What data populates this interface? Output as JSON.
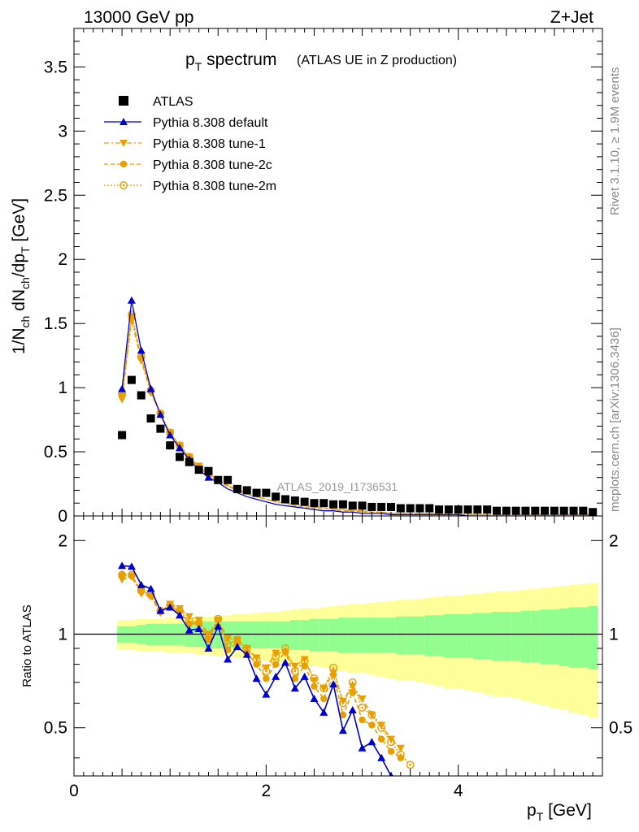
{
  "header": {
    "left": "13000 GeV pp",
    "right": "Z+Jet"
  },
  "title": {
    "main": "p",
    "main_sub": "T",
    "main_rest": " spectrum",
    "small": "(ATLAS UE in Z production)"
  },
  "watermark": "ATLAS_2019_I1736531",
  "side_texts": {
    "rivet": "Rivet 3.1.10, ≥ 1.9M events",
    "mcplots": "mcplots.cern.ch [arXiv:1306.3436]"
  },
  "axes": {
    "ylabel_top": "1/N_ch dN_ch/dp_T [GeV]",
    "ylabel_bottom": "Ratio to ATLAS",
    "xlabel": "p_T [GeV]",
    "x_ticks": [
      "0",
      "2",
      "4"
    ],
    "y_ticks_top": [
      "0",
      "0.5",
      "1",
      "1.5",
      "2",
      "2.5",
      "3",
      "3.5"
    ],
    "y_ticks_ratio": [
      "0.5",
      "1",
      "2"
    ]
  },
  "chart_data": {
    "type": "scatter",
    "x_range": [
      0,
      5.5
    ],
    "y_range_top": [
      0,
      3.8
    ],
    "y_range_ratio": [
      0.35,
      2.4
    ],
    "ratio_log_scale": true,
    "x": [
      0.5,
      0.6,
      0.7,
      0.8,
      0.9,
      1.0,
      1.1,
      1.2,
      1.3,
      1.4,
      1.5,
      1.6,
      1.7,
      1.8,
      1.9,
      2.0,
      2.1,
      2.2,
      2.3,
      2.4,
      2.5,
      2.6,
      2.7,
      2.8,
      2.9,
      3.0,
      3.1,
      3.2,
      3.3,
      3.4,
      3.5,
      3.6,
      3.7,
      3.8,
      3.9,
      4.0,
      4.1,
      4.2,
      4.3,
      4.4,
      4.5,
      4.6,
      4.7,
      4.8,
      4.9,
      5.0,
      5.1,
      5.2,
      5.3,
      5.4
    ],
    "atlas": [
      0.63,
      1.06,
      0.94,
      0.76,
      0.68,
      0.55,
      0.46,
      0.42,
      0.36,
      0.35,
      0.28,
      0.28,
      0.21,
      0.2,
      0.18,
      0.18,
      0.15,
      0.13,
      0.12,
      0.11,
      0.1,
      0.1,
      0.09,
      0.09,
      0.08,
      0.08,
      0.07,
      0.07,
      0.07,
      0.06,
      0.06,
      0.06,
      0.06,
      0.05,
      0.05,
      0.05,
      0.05,
      0.05,
      0.05,
      0.04,
      0.04,
      0.04,
      0.04,
      0.04,
      0.04,
      0.04,
      0.04,
      0.04,
      0.04,
      0.03
    ],
    "series": [
      {
        "name": "Pythia 8.308 default",
        "color": "#0000cc",
        "marker": "triangle-up",
        "line": "solid",
        "values": [
          0.99,
          1.68,
          1.29,
          0.99,
          0.79,
          0.63,
          0.53,
          0.44,
          0.36,
          0.3,
          0.26,
          0.21,
          0.18,
          0.15,
          0.13,
          0.11,
          0.09,
          0.08,
          0.07,
          0.06,
          0.05,
          0.04,
          0.04,
          0.03,
          0.03,
          0.02,
          0.02,
          0.02,
          0.01,
          0.01,
          0.01,
          0.01,
          0.01,
          0.01,
          0.01,
          0.01,
          0.0,
          0.0,
          0.0,
          0.0,
          0.0,
          0.0,
          0.0,
          0.0,
          0.0,
          0.0,
          0.0,
          0.0,
          0.0,
          0.0
        ]
      },
      {
        "name": "Pythia 8.308 tune-1",
        "color": "#e8a000",
        "marker": "triangle-down",
        "line": "dashdot",
        "values": [
          0.91,
          1.52,
          1.21,
          0.96,
          0.79,
          0.65,
          0.55,
          0.46,
          0.39,
          0.33,
          0.28,
          0.24,
          0.21,
          0.18,
          0.15,
          0.13,
          0.11,
          0.1,
          0.09,
          0.08,
          0.07,
          0.06,
          0.05,
          0.05,
          0.04,
          0.04,
          0.03,
          0.03,
          0.02,
          0.02,
          0.02,
          0.02,
          0.02,
          0.02,
          0.01,
          0.01,
          0.01,
          0.01,
          0.01,
          0.01,
          0.01,
          0.01,
          0.01,
          0.01,
          0.01,
          0.01,
          0.01,
          0.01,
          0.01,
          0.01
        ]
      },
      {
        "name": "Pythia 8.308 tune-2c",
        "color": "#e8a000",
        "marker": "circle",
        "line": "dashed",
        "values": [
          0.94,
          1.56,
          1.23,
          0.97,
          0.79,
          0.64,
          0.54,
          0.45,
          0.38,
          0.32,
          0.27,
          0.23,
          0.2,
          0.17,
          0.15,
          0.13,
          0.11,
          0.1,
          0.08,
          0.07,
          0.06,
          0.06,
          0.05,
          0.04,
          0.04,
          0.03,
          0.03,
          0.03,
          0.02,
          0.02,
          0.02,
          0.02,
          0.02,
          0.01,
          0.01,
          0.01,
          0.01,
          0.01,
          0.01,
          0.01,
          0.01,
          0.01,
          0.01,
          0.01,
          0.01,
          0.01,
          0.01,
          0.01,
          0.01,
          0.01
        ]
      },
      {
        "name": "Pythia 8.308 tune-2m",
        "color": "#e8a000",
        "marker": "circle-open",
        "line": "dotted",
        "values": [
          0.95,
          1.57,
          1.24,
          0.98,
          0.8,
          0.65,
          0.55,
          0.46,
          0.38,
          0.33,
          0.28,
          0.24,
          0.2,
          0.17,
          0.15,
          0.13,
          0.11,
          0.1,
          0.09,
          0.08,
          0.07,
          0.06,
          0.05,
          0.05,
          0.04,
          0.04,
          0.03,
          0.03,
          0.02,
          0.02,
          0.02,
          0.02,
          0.02,
          0.02,
          0.01,
          0.01,
          0.01,
          0.01,
          0.01,
          0.01,
          0.01,
          0.01,
          0.01,
          0.01,
          0.01,
          0.01,
          0.01,
          0.01,
          0.01,
          0.01
        ]
      }
    ],
    "ratios": {
      "Pythia 8.308 default": [
        1.66,
        1.65,
        1.44,
        1.4,
        1.19,
        1.22,
        1.15,
        1.03,
        1.04,
        0.9,
        1.06,
        0.83,
        0.91,
        0.86,
        0.72,
        0.64,
        0.73,
        0.81,
        0.67,
        0.73,
        0.62,
        0.56,
        0.69,
        0.49,
        0.57,
        0.43,
        0.45,
        0.4,
        0.35
      ],
      "Pythia 8.308 tune-1": [
        1.5,
        1.53,
        1.35,
        1.32,
        1.17,
        1.25,
        1.21,
        1.14,
        1.11,
        1.0,
        1.11,
        0.97,
        0.96,
        0.9,
        0.84,
        0.78,
        0.87,
        0.87,
        0.79,
        0.83,
        0.71,
        0.67,
        0.75,
        0.61,
        0.68,
        0.62,
        0.55,
        0.51,
        0.46,
        0.43
      ],
      "Pythia 8.308 tune-2c": [
        1.56,
        1.54,
        1.38,
        1.33,
        1.18,
        1.23,
        1.18,
        1.08,
        1.08,
        0.96,
        1.11,
        0.89,
        0.94,
        0.87,
        0.8,
        0.72,
        0.8,
        0.88,
        0.72,
        0.79,
        0.68,
        0.62,
        0.74,
        0.55,
        0.65,
        0.53,
        0.51,
        0.46,
        0.42,
        0.4
      ],
      "Pythia 8.308 tune-2m": [
        1.55,
        1.55,
        1.38,
        1.34,
        1.19,
        1.24,
        1.19,
        1.1,
        1.09,
        0.98,
        1.12,
        0.93,
        0.96,
        0.9,
        0.83,
        0.76,
        0.85,
        0.9,
        0.76,
        0.82,
        0.72,
        0.67,
        0.78,
        0.6,
        0.7,
        0.58,
        0.55,
        0.5,
        0.45,
        0.41,
        0.38
      ]
    },
    "band_inner": [
      0.06,
      0.06,
      0.07,
      0.08,
      0.08,
      0.08,
      0.08,
      0.09,
      0.09,
      0.1,
      0.1,
      0.1,
      0.1,
      0.1,
      0.1,
      0.1,
      0.1,
      0.1,
      0.11,
      0.11,
      0.12,
      0.12,
      0.12,
      0.13,
      0.13,
      0.13,
      0.13,
      0.13,
      0.13,
      0.14,
      0.14,
      0.14,
      0.15,
      0.15,
      0.16,
      0.16,
      0.16,
      0.17,
      0.17,
      0.18,
      0.18,
      0.18,
      0.19,
      0.19,
      0.2,
      0.2,
      0.21,
      0.22,
      0.22,
      0.23
    ],
    "band_outer": [
      0.11,
      0.11,
      0.12,
      0.12,
      0.12,
      0.13,
      0.13,
      0.13,
      0.14,
      0.14,
      0.15,
      0.15,
      0.16,
      0.16,
      0.17,
      0.18,
      0.18,
      0.19,
      0.2,
      0.21,
      0.21,
      0.22,
      0.23,
      0.24,
      0.25,
      0.25,
      0.26,
      0.27,
      0.28,
      0.29,
      0.29,
      0.3,
      0.31,
      0.32,
      0.33,
      0.33,
      0.34,
      0.35,
      0.36,
      0.37,
      0.37,
      0.38,
      0.39,
      0.4,
      0.41,
      0.42,
      0.43,
      0.44,
      0.45,
      0.46
    ],
    "band_colors": {
      "inner": "#90ff90",
      "outer": "#ffff99"
    }
  }
}
